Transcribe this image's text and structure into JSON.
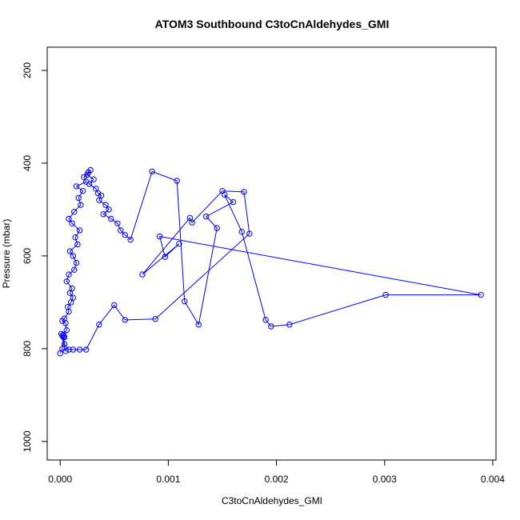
{
  "chart_data": {
    "type": "line",
    "title": "ATOM3 Southbound C3toCnAldehydes_GMI",
    "xlabel": "C3toCnAldehydes_GMI",
    "ylabel": "Pressure (mbar)",
    "xlim": [
      -0.00012,
      0.00403
    ],
    "ylim": [
      1040,
      150
    ],
    "y_inverted": true,
    "x_ticks": [
      0,
      0.001,
      0.002,
      0.003,
      0.004
    ],
    "x_tick_labels": [
      "0.000",
      "0.001",
      "0.002",
      "0.003",
      "0.004"
    ],
    "y_ticks": [
      200,
      400,
      600,
      800,
      1000
    ],
    "y_tick_labels": [
      "200",
      "400",
      "600",
      "800",
      "1000"
    ],
    "grid": false,
    "legend": "none",
    "marker": "open-circle",
    "color": "#0000ff",
    "series": [
      {
        "x": [
          0.0,
          2e-05,
          4e-05,
          3e-05,
          6e-05,
          5e-05,
          2e-05,
          4e-05,
          8e-05,
          7e-05,
          0.0001,
          0.00012,
          9e-05,
          0.00011,
          6e-05,
          8e-05,
          0.00013,
          0.00015,
          0.00012,
          9e-05,
          0.00016,
          0.00014,
          0.00018,
          0.00011,
          8e-05,
          0.00013,
          0.00019,
          0.00017,
          0.00021,
          0.00015,
          0.00024,
          0.00022,
          0.00026,
          0.00028,
          0.00025,
          0.00031,
          0.00027,
          0.00033,
          0.00035,
          0.00038,
          0.00036,
          0.00042,
          0.00045,
          0.0004,
          0.00047,
          0.00053,
          0.00056,
          0.0006,
          0.00065,
          0.00085,
          0.00108,
          0.00115,
          0.00128,
          0.00145,
          0.00135,
          0.0016,
          0.00152,
          0.00168,
          0.0019,
          0.00195,
          0.00212,
          0.00301,
          0.00389,
          0.00092,
          0.00097,
          0.0011,
          0.00076,
          0.0012,
          0.00122,
          0.0015,
          0.0017,
          0.00175,
          0.00088,
          0.0006,
          0.0005,
          0.00036,
          0.00024,
          0.00018,
          0.00012,
          8e-05,
          4e-05,
          3e-05,
          2e-05,
          1e-05,
          5e-05
        ],
        "y": [
          810,
          800,
          775,
          770,
          760,
          745,
          740,
          735,
          720,
          710,
          700,
          690,
          680,
          670,
          655,
          640,
          630,
          615,
          600,
          590,
          575,
          560,
          545,
          530,
          520,
          505,
          490,
          475,
          460,
          450,
          440,
          430,
          420,
          415,
          425,
          435,
          445,
          455,
          465,
          470,
          480,
          490,
          500,
          510,
          520,
          530,
          545,
          555,
          565,
          418,
          438,
          698,
          748,
          540,
          515,
          484,
          468,
          548,
          738,
          752,
          748,
          684,
          684,
          558,
          602,
          574,
          640,
          518,
          528,
          460,
          462,
          552,
          736,
          738,
          706,
          748,
          802,
          802,
          802,
          802,
          790,
          775,
          772,
          768,
          805
        ]
      }
    ]
  }
}
